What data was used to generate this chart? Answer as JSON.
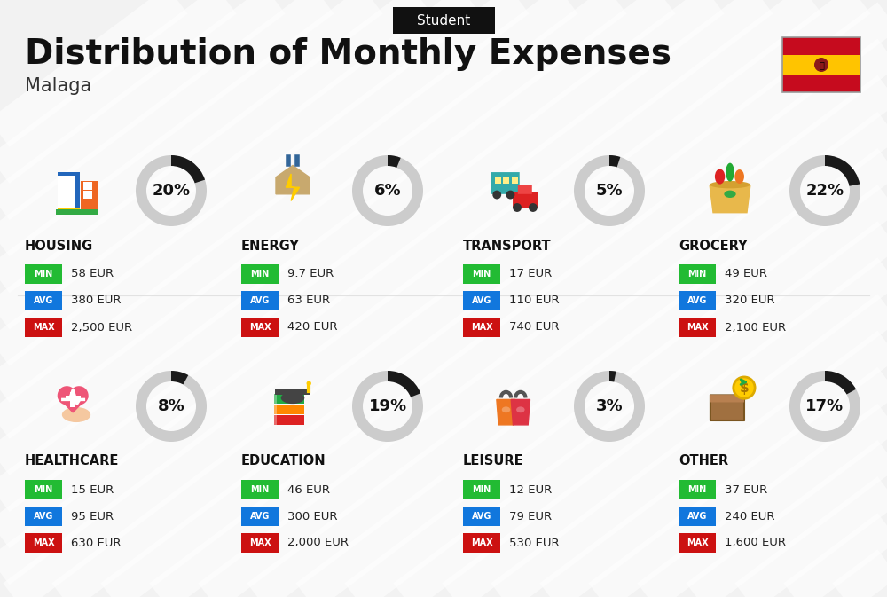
{
  "title_tag": "Student",
  "title": "Distribution of Monthly Expenses",
  "subtitle": "Malaga",
  "bg_color": "#f2f2f2",
  "categories": [
    {
      "name": "HOUSING",
      "pct": 20,
      "min": "58 EUR",
      "avg": "380 EUR",
      "max": "2,500 EUR",
      "row": 0,
      "col": 0
    },
    {
      "name": "ENERGY",
      "pct": 6,
      "min": "9.7 EUR",
      "avg": "63 EUR",
      "max": "420 EUR",
      "row": 0,
      "col": 1
    },
    {
      "name": "TRANSPORT",
      "pct": 5,
      "min": "17 EUR",
      "avg": "110 EUR",
      "max": "740 EUR",
      "row": 0,
      "col": 2
    },
    {
      "name": "GROCERY",
      "pct": 22,
      "min": "49 EUR",
      "avg": "320 EUR",
      "max": "2,100 EUR",
      "row": 0,
      "col": 3
    },
    {
      "name": "HEALTHCARE",
      "pct": 8,
      "min": "15 EUR",
      "avg": "95 EUR",
      "max": "630 EUR",
      "row": 1,
      "col": 0
    },
    {
      "name": "EDUCATION",
      "pct": 19,
      "min": "46 EUR",
      "avg": "300 EUR",
      "max": "2,000 EUR",
      "row": 1,
      "col": 1
    },
    {
      "name": "LEISURE",
      "pct": 3,
      "min": "12 EUR",
      "avg": "79 EUR",
      "max": "530 EUR",
      "row": 1,
      "col": 2
    },
    {
      "name": "OTHER",
      "pct": 17,
      "min": "37 EUR",
      "avg": "240 EUR",
      "max": "1,600 EUR",
      "row": 1,
      "col": 3
    }
  ],
  "min_color": "#22bb33",
  "avg_color": "#1177dd",
  "max_color": "#cc1111",
  "donut_dark": "#1a1a1a",
  "donut_light": "#cccccc",
  "stripe_color": "#e8e8e8"
}
